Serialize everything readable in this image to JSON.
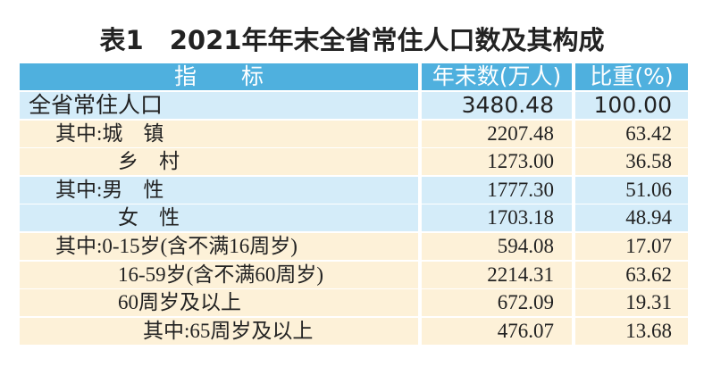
{
  "table": {
    "title": "表1　2021年年末全省常住人口数及其构成",
    "header": [
      "指　　标",
      "年末数(万人)",
      "比重(%)"
    ],
    "rows": [
      [
        "全省常住人口",
        "3480.48",
        "100.00"
      ],
      [
        "其中:城　镇",
        "2207.48",
        "63.42"
      ],
      [
        "乡　村",
        "1273.00",
        "36.58"
      ],
      [
        "其中:男　性",
        "1777.30",
        "51.06"
      ],
      [
        "女　性",
        "1703.18",
        "48.94"
      ],
      [
        "其中:0-15岁(含不满16周岁)",
        "594.08",
        "17.07"
      ],
      [
        "16-59岁(含不满60周岁)",
        "2214.31",
        "63.62"
      ],
      [
        "60周岁及以上",
        "672.09",
        "19.31"
      ],
      [
        "其中:65周岁及以上",
        "476.07",
        "13.68"
      ]
    ]
  }
}
